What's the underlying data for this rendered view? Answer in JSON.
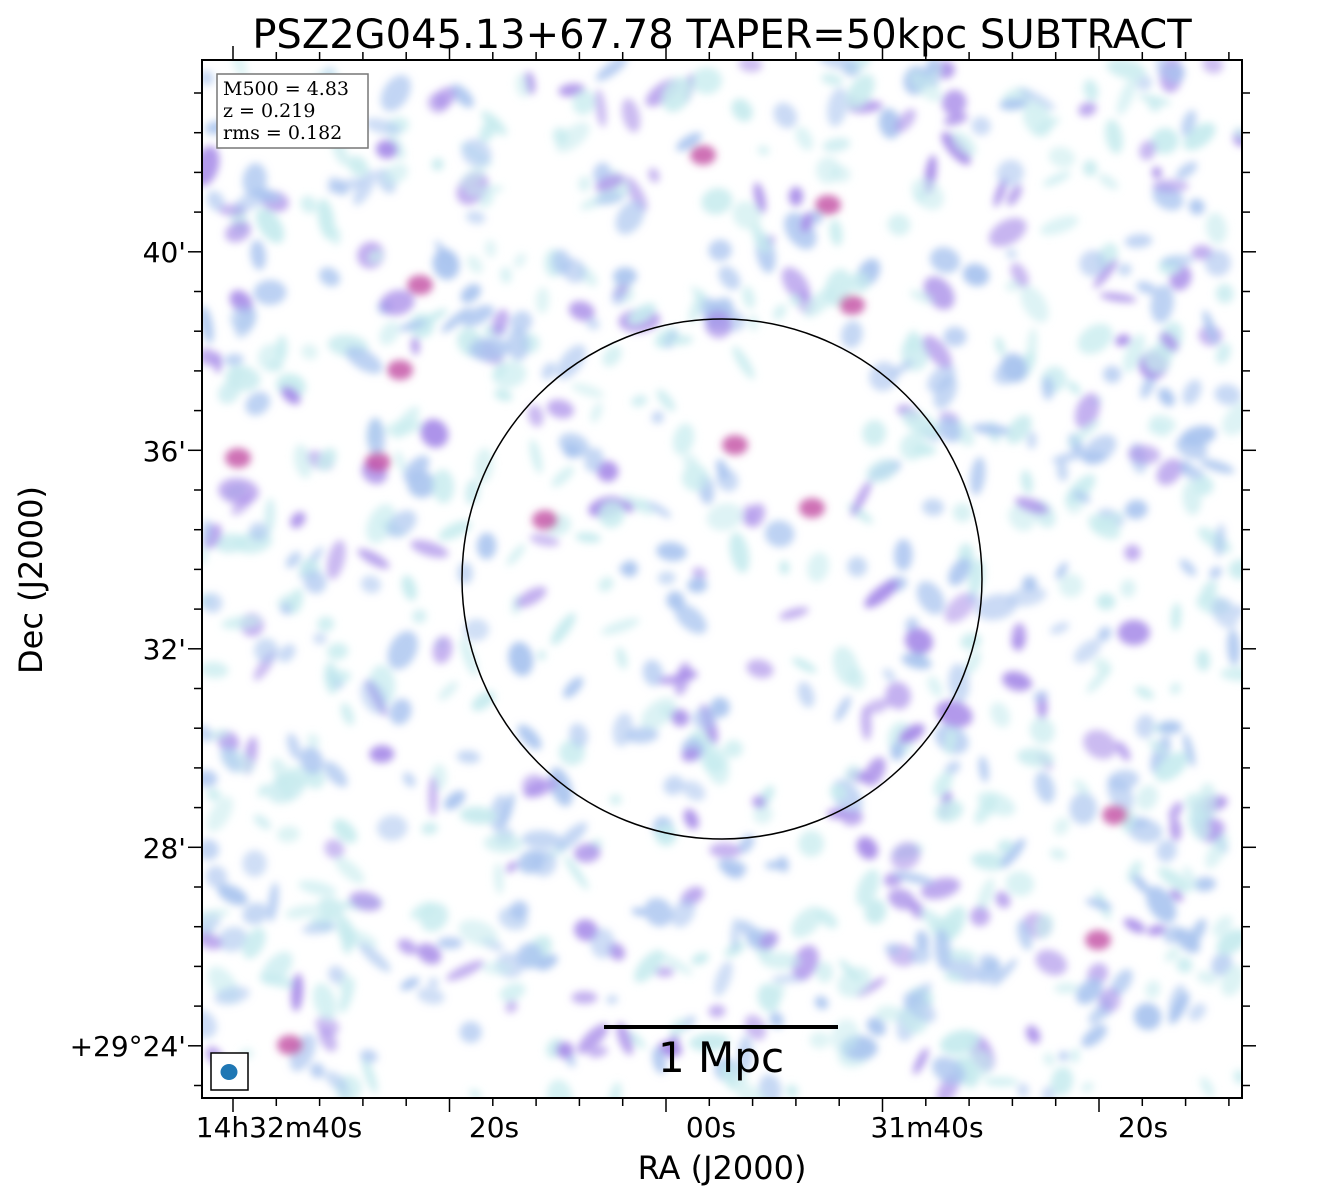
{
  "title": "PSZ2G045.13+67.78 TAPER=50kpc SUBTRACT",
  "axes": {
    "xlabel": "RA (J2000)",
    "ylabel": "Dec (J2000)",
    "x_ticks": [
      "14h32m40s",
      "20s",
      "00s",
      "31m40s",
      "20s"
    ],
    "y_ticks": [
      "40'",
      "36'",
      "32'",
      "28'",
      "+29°24'"
    ]
  },
  "info_box": {
    "line1": "M500 = 4.83",
    "line2": "z = 0.219",
    "line3": "rms = 0.182"
  },
  "scale_bar": {
    "label": "1 Mpc"
  },
  "colors": {
    "noise_low": "#c6ebee",
    "noise_mid": "#a9c4ef",
    "noise_high": "#a78be8",
    "peak": "#c24ea2",
    "beam": "#1f77b4"
  }
}
